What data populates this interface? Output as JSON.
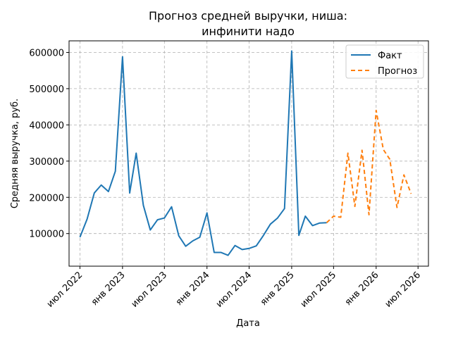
{
  "chart_data": {
    "type": "line",
    "title": [
      "Прогноз средней выручки, ниша:",
      "инфинити надо"
    ],
    "xlabel": "Дата",
    "ylabel": "Средняя выручка, руб.",
    "grid": true,
    "legend_position": "top-right",
    "x_ticks": [
      {
        "date": "2022-07-01",
        "label": "июл 2022"
      },
      {
        "date": "2023-01-01",
        "label": "янв 2023"
      },
      {
        "date": "2023-07-01",
        "label": "июл 2023"
      },
      {
        "date": "2024-01-01",
        "label": "янв 2024"
      },
      {
        "date": "2024-07-01",
        "label": "июл 2024"
      },
      {
        "date": "2025-01-01",
        "label": "янв 2025"
      },
      {
        "date": "2025-07-01",
        "label": "июл 2025"
      },
      {
        "date": "2026-01-01",
        "label": "янв 2026"
      },
      {
        "date": "2026-07-01",
        "label": "июл 2026"
      }
    ],
    "y_ticks": [
      100000,
      200000,
      300000,
      400000,
      500000,
      600000
    ],
    "y_tick_labels": [
      "100000",
      "200000",
      "300000",
      "400000",
      "500000",
      "600000"
    ],
    "xlim": [
      "2022-05-15",
      "2026-08-15"
    ],
    "ylim": [
      10000,
      632000
    ],
    "series": [
      {
        "name": "Факт",
        "color": "#1f77b4",
        "dash": false,
        "x": [
          "2022-07-01",
          "2022-08-01",
          "2022-09-01",
          "2022-10-01",
          "2022-11-01",
          "2022-12-01",
          "2023-01-01",
          "2023-02-01",
          "2023-03-01",
          "2023-04-01",
          "2023-05-01",
          "2023-06-01",
          "2023-07-01",
          "2023-08-01",
          "2023-09-01",
          "2023-10-01",
          "2023-11-01",
          "2023-12-01",
          "2024-01-01",
          "2024-02-01",
          "2024-03-01",
          "2024-04-01",
          "2024-05-01",
          "2024-06-01",
          "2024-07-01",
          "2024-08-01",
          "2024-09-01",
          "2024-10-01",
          "2024-11-01",
          "2024-12-01",
          "2025-01-01",
          "2025-02-01",
          "2025-03-01",
          "2025-04-01",
          "2025-05-01",
          "2025-06-01"
        ],
        "y": [
          90000,
          140000,
          212000,
          234000,
          216000,
          272000,
          588000,
          212000,
          322000,
          178000,
          110000,
          138000,
          143000,
          174000,
          94000,
          65000,
          80000,
          90000,
          157000,
          48000,
          48000,
          40000,
          67000,
          56000,
          59000,
          66000,
          95000,
          126000,
          143000,
          169000,
          604000,
          95000,
          148000,
          122000,
          129000,
          130000
        ]
      },
      {
        "name": "Прогноз",
        "color": "#ff7f0e",
        "dash": true,
        "x": [
          "2025-06-01",
          "2025-07-01",
          "2025-08-01",
          "2025-09-01",
          "2025-10-01",
          "2025-11-01",
          "2025-12-01",
          "2026-01-01",
          "2026-02-01",
          "2026-03-01",
          "2026-04-01",
          "2026-05-01",
          "2026-06-01"
        ],
        "y": [
          130000,
          148000,
          145000,
          322000,
          175000,
          330000,
          152000,
          440000,
          332000,
          305000,
          172000,
          262000,
          210000
        ]
      }
    ]
  }
}
